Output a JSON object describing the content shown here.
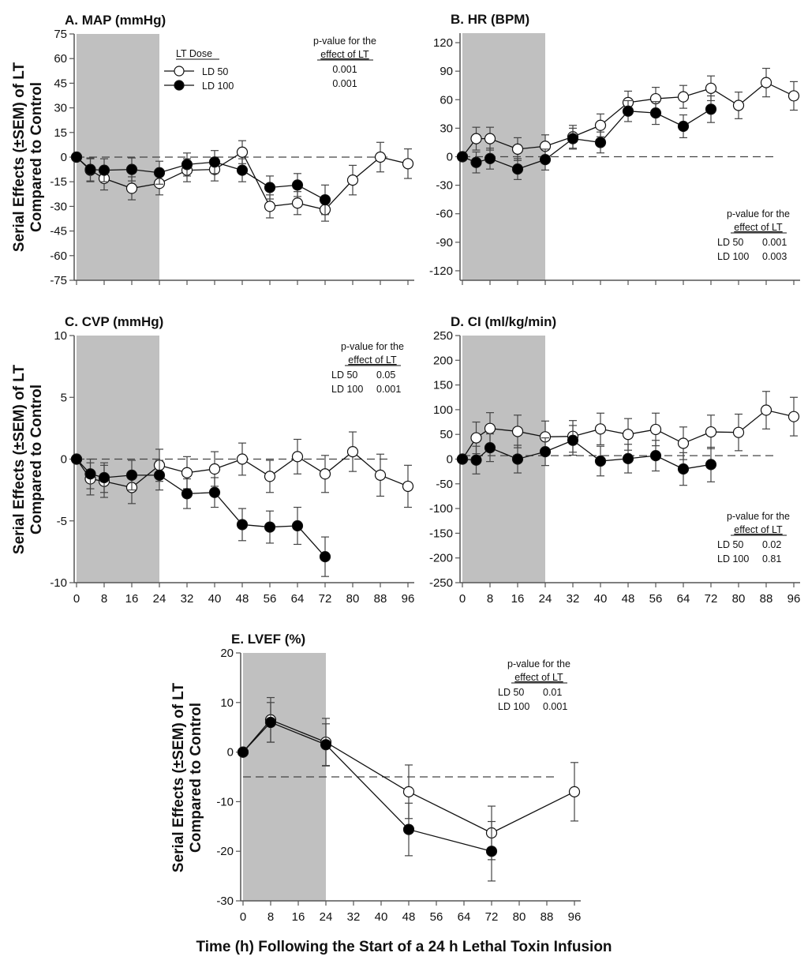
{
  "figure": {
    "ylabel_line1": "Serial Effects (±SEM) of LT",
    "ylabel_line2": "Compared to Control",
    "xlabel": "Time (h) Following the Start of a 24 h Lethal Toxin Infusion",
    "legend": {
      "title": "LT Dose",
      "entries": [
        {
          "name": "LD 50",
          "marker": "open-circle"
        },
        {
          "name": "LD 100",
          "marker": "filled-circle"
        }
      ]
    },
    "shaded_region_hours": [
      0,
      24
    ],
    "colors": {
      "shade": "#c0c0c0",
      "axis": "#555555",
      "line": "#111111",
      "open_fill": "#ffffff",
      "filled_fill": "#000000"
    }
  },
  "chart_data": [
    {
      "type": "line",
      "id": "A",
      "title": "A. MAP (mmHg)",
      "xlabel": "",
      "ylabel": "Serial Effects (±SEM) of LT Compared to Control",
      "xlim": [
        0,
        96
      ],
      "xticks": [
        0,
        8,
        16,
        24,
        32,
        40,
        48,
        56,
        64,
        72,
        80,
        88,
        96
      ],
      "show_xtick_labels": false,
      "ylim": [
        -75,
        75
      ],
      "yticks": [
        -75,
        -60,
        -45,
        -30,
        -15,
        0,
        15,
        30,
        45,
        60,
        75
      ],
      "reference_line": 0,
      "pvalue_note": {
        "heading1": "p-value for the",
        "heading2": "effect of LT",
        "rows": [
          {
            "label": "",
            "value": "0.001"
          },
          {
            "label": "",
            "value": "0.001"
          }
        ],
        "position": "top-right"
      },
      "show_legend": true,
      "series": [
        {
          "name": "LD 50",
          "x": [
            0,
            4,
            8,
            16,
            24,
            32,
            40,
            48,
            56,
            64,
            72,
            80,
            88,
            96
          ],
          "y": [
            0,
            -8,
            -13,
            -19,
            -16,
            -8,
            -7.5,
            3,
            -30,
            -28,
            -32,
            -14,
            0,
            -4
          ],
          "sem": [
            0,
            7,
            7,
            7,
            7,
            7,
            7,
            7,
            7,
            7,
            7,
            9,
            9,
            9
          ]
        },
        {
          "name": "LD 100",
          "x": [
            0,
            4,
            8,
            16,
            24,
            32,
            40,
            48,
            56,
            64,
            72
          ],
          "y": [
            0,
            -7.5,
            -8,
            -7.5,
            -9.5,
            -4.5,
            -3,
            -8,
            -18.5,
            -17,
            -26
          ],
          "sem": [
            0,
            7,
            7,
            7,
            7,
            7,
            7,
            7,
            7,
            7,
            9
          ]
        }
      ]
    },
    {
      "type": "line",
      "id": "B",
      "title": "B. HR (BPM)",
      "xlim": [
        0,
        96
      ],
      "xticks": [
        0,
        8,
        16,
        24,
        32,
        40,
        48,
        56,
        64,
        72,
        80,
        88,
        96
      ],
      "show_xtick_labels": false,
      "ylim": [
        -130,
        130
      ],
      "yticks": [
        -120,
        -90,
        -60,
        -30,
        0,
        30,
        60,
        90,
        120
      ],
      "reference_line": 0,
      "pvalue_note": {
        "heading1": "p-value for the",
        "heading2": "effect of LT",
        "rows": [
          {
            "label": "LD 50",
            "value": "0.001"
          },
          {
            "label": "LD 100",
            "value": "0.003"
          }
        ],
        "position": "bottom-right"
      },
      "series": [
        {
          "name": "LD 50",
          "x": [
            0,
            4,
            8,
            16,
            24,
            32,
            40,
            48,
            56,
            64,
            72,
            80,
            88,
            96
          ],
          "y": [
            0,
            19,
            19,
            8,
            11,
            21,
            33,
            57,
            61,
            63,
            72,
            54,
            78,
            64
          ],
          "sem": [
            0,
            12,
            12,
            12,
            12,
            12,
            12,
            12,
            12,
            12,
            13,
            14,
            15,
            15
          ]
        },
        {
          "name": "LD 100",
          "x": [
            0,
            4,
            8,
            16,
            24,
            32,
            40,
            48,
            56,
            64,
            72
          ],
          "y": [
            0,
            -6,
            -2,
            -13,
            -3,
            19,
            15,
            48,
            46,
            32,
            50
          ],
          "sem": [
            0,
            11,
            11,
            11,
            11,
            11,
            11,
            11,
            12,
            12,
            14
          ]
        }
      ]
    },
    {
      "type": "line",
      "id": "C",
      "title": "C. CVP (mmHg)",
      "xlim": [
        0,
        96
      ],
      "xticks": [
        0,
        8,
        16,
        24,
        32,
        40,
        48,
        56,
        64,
        72,
        80,
        88,
        96
      ],
      "show_xtick_labels": true,
      "ylim": [
        -10,
        10
      ],
      "yticks": [
        -10,
        -5,
        0,
        5,
        10
      ],
      "reference_line": 0,
      "pvalue_note": {
        "heading1": "p-value for the",
        "heading2": "effect of LT",
        "rows": [
          {
            "label": "LD 50",
            "value": "0.05"
          },
          {
            "label": "LD 100",
            "value": "0.001"
          }
        ],
        "position": "top-right"
      },
      "series": [
        {
          "name": "LD 50",
          "x": [
            0,
            4,
            8,
            16,
            24,
            32,
            40,
            48,
            56,
            64,
            72,
            80,
            88,
            96
          ],
          "y": [
            0,
            -1.6,
            -1.8,
            -2.3,
            -0.5,
            -1.1,
            -0.8,
            0,
            -1.4,
            0.2,
            -1.2,
            0.6,
            -1.3,
            -2.2
          ],
          "sem": [
            0,
            1.3,
            1.3,
            1.3,
            1.3,
            1.3,
            1.4,
            1.3,
            1.3,
            1.4,
            1.5,
            1.6,
            1.7,
            1.7
          ]
        },
        {
          "name": "LD 100",
          "x": [
            0,
            4,
            8,
            16,
            24,
            32,
            40,
            48,
            56,
            64,
            72
          ],
          "y": [
            0,
            -1.2,
            -1.5,
            -1.3,
            -1.3,
            -2.8,
            -2.7,
            -5.3,
            -5.5,
            -5.4,
            -7.9
          ],
          "sem": [
            0,
            1.2,
            1.2,
            1.2,
            1.2,
            1.2,
            1.2,
            1.3,
            1.3,
            1.5,
            1.6
          ]
        }
      ]
    },
    {
      "type": "line",
      "id": "D",
      "title": "D. CI (ml/kg/min)",
      "xlim": [
        0,
        96
      ],
      "xticks": [
        0,
        8,
        16,
        24,
        32,
        40,
        48,
        56,
        64,
        72,
        80,
        88,
        96
      ],
      "show_xtick_labels": true,
      "ylim": [
        -250,
        250
      ],
      "yticks": [
        -250,
        -200,
        -150,
        -100,
        -50,
        0,
        50,
        100,
        150,
        200,
        250
      ],
      "reference_line": 7,
      "pvalue_note": {
        "heading1": "p-value for the",
        "heading2": "effect of LT",
        "rows": [
          {
            "label": "LD 50",
            "value": "0.02"
          },
          {
            "label": "LD 100",
            "value": "0.81"
          }
        ],
        "position": "bottom-right"
      },
      "series": [
        {
          "name": "LD 50",
          "x": [
            0,
            4,
            8,
            16,
            24,
            32,
            40,
            48,
            56,
            64,
            72,
            80,
            88,
            96
          ],
          "y": [
            0,
            43,
            62,
            56,
            45,
            46,
            61,
            50,
            60,
            32,
            55,
            54,
            99,
            86
          ],
          "sem": [
            0,
            32,
            32,
            33,
            32,
            32,
            32,
            32,
            33,
            33,
            34,
            37,
            38,
            39
          ]
        },
        {
          "name": "LD 100",
          "x": [
            0,
            4,
            8,
            16,
            24,
            32,
            40,
            48,
            56,
            64,
            72
          ],
          "y": [
            0,
            -2,
            23,
            0,
            15,
            38,
            -4,
            1,
            7,
            -20,
            -11
          ],
          "sem": [
            0,
            28,
            28,
            28,
            28,
            30,
            30,
            29,
            31,
            33,
            35
          ]
        }
      ]
    },
    {
      "type": "line",
      "id": "E",
      "title": "E. LVEF (%)",
      "xlim": [
        0,
        96
      ],
      "xticks": [
        0,
        8,
        16,
        24,
        32,
        40,
        48,
        56,
        64,
        72,
        80,
        88,
        96
      ],
      "show_xtick_labels": true,
      "ylim": [
        -30,
        20
      ],
      "yticks": [
        -30,
        -20,
        -10,
        0,
        10,
        20
      ],
      "reference_line": -5,
      "pvalue_note": {
        "heading1": "p-value for the",
        "heading2": "effect of LT",
        "rows": [
          {
            "label": "LD 50",
            "value": "0.01"
          },
          {
            "label": "LD 100",
            "value": "0.001"
          }
        ],
        "position": "top-right"
      },
      "series": [
        {
          "name": "LD 50",
          "x": [
            0,
            8,
            24,
            48,
            72,
            96
          ],
          "y": [
            0,
            6.5,
            2,
            -8,
            -16.3,
            -8
          ],
          "sem": [
            0,
            4.5,
            4.8,
            5.4,
            5.4,
            5.9
          ]
        },
        {
          "name": "LD 100",
          "x": [
            0,
            8,
            24,
            48,
            72
          ],
          "y": [
            0,
            6,
            1.5,
            -15.6,
            -20
          ],
          "sem": [
            0,
            4,
            4.2,
            5.3,
            6
          ]
        }
      ]
    }
  ]
}
